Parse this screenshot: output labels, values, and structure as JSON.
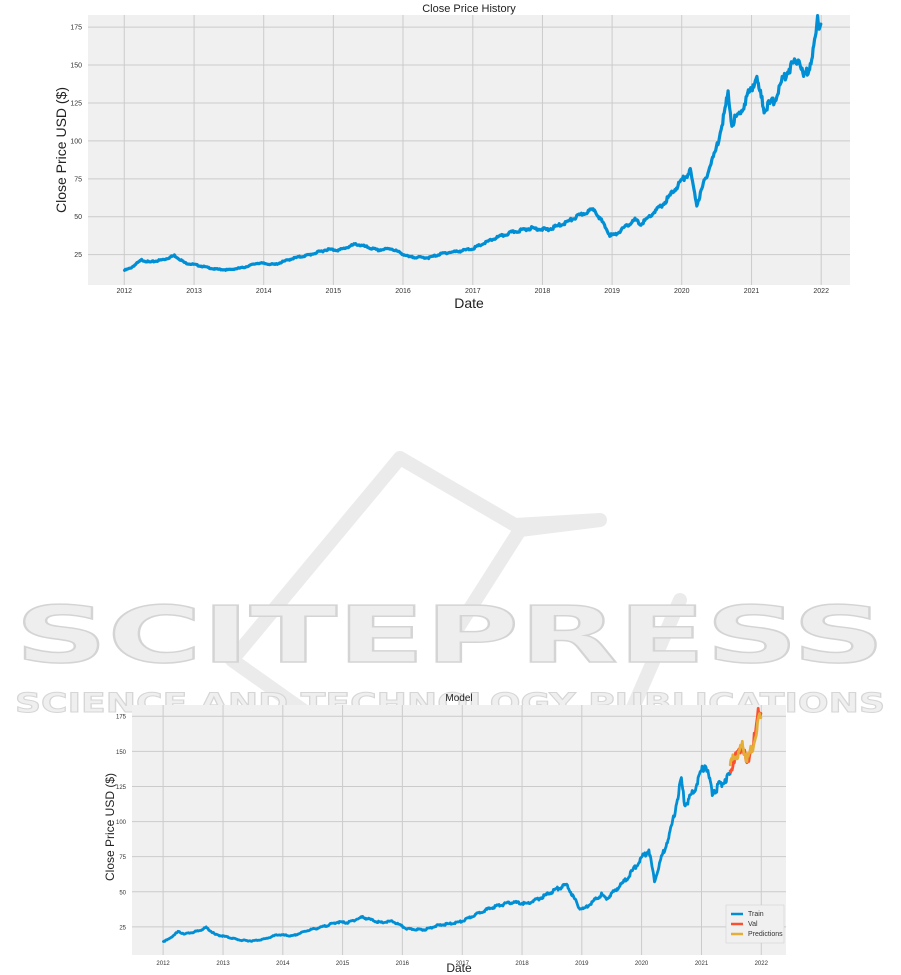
{
  "watermark": {
    "brand": "SCITEPRESS",
    "tagline": "SCIENCE AND TECHNOLOGY PUBLICATIONS"
  },
  "colors": {
    "train": "#008fd5",
    "val": "#fc4f30",
    "predictions": "#e5ae38",
    "plot_bg": "#f0f0f0",
    "grid": "#cbcbcb"
  },
  "chart_data": [
    {
      "type": "line",
      "title": "Close Price History",
      "xlabel": "Date",
      "ylabel": "Close Price USD ($)",
      "x_ticks": [
        "2012",
        "2013",
        "2014",
        "2015",
        "2016",
        "2017",
        "2018",
        "2019",
        "2020",
        "2021",
        "2022"
      ],
      "y_ticks": [
        "25",
        "50",
        "75",
        "100",
        "125",
        "150",
        "175"
      ],
      "xlim": [
        "2011-06-25",
        "2022-06-01"
      ],
      "ylim": [
        5,
        183
      ],
      "grid": true,
      "series": [
        {
          "key": "close",
          "x": [
            "2012-01-03",
            "2012-02-01",
            "2012-04-01",
            "2012-05-15",
            "2012-08-01",
            "2012-09-20",
            "2012-11-15",
            "2013-01-01",
            "2013-04-20",
            "2013-07-01",
            "2013-09-15",
            "2013-12-01",
            "2014-03-01",
            "2014-06-01",
            "2014-09-01",
            "2014-12-01",
            "2015-02-01",
            "2015-05-01",
            "2015-08-20",
            "2015-11-01",
            "2016-02-01",
            "2016-05-15",
            "2016-08-01",
            "2016-11-01",
            "2017-01-01",
            "2017-05-01",
            "2017-08-01",
            "2017-11-01",
            "2018-02-01",
            "2018-05-01",
            "2018-08-01",
            "2018-10-01",
            "2018-12-20",
            "2019-01-15",
            "2019-05-01",
            "2019-06-01",
            "2019-08-01",
            "2019-10-01",
            "2020-01-01",
            "2020-02-15",
            "2020-03-20",
            "2020-05-01",
            "2020-07-01",
            "2020-08-31",
            "2020-09-20",
            "2020-11-01",
            "2021-01-25",
            "2021-03-08",
            "2021-05-01",
            "2021-07-01",
            "2021-09-07",
            "2021-10-01",
            "2021-11-01",
            "2021-12-01",
            "2021-12-13",
            "2021-12-30"
          ],
          "values": [
            14.7,
            16,
            21.5,
            20,
            22,
            24.5,
            19.5,
            18.5,
            15.5,
            15,
            16.5,
            19.5,
            18.5,
            22.5,
            25,
            28.5,
            28,
            32,
            28,
            29,
            23.5,
            23,
            26,
            27.5,
            29,
            36,
            40,
            42.5,
            41.5,
            46,
            52,
            55,
            38,
            38,
            48,
            45,
            52,
            59,
            74,
            80,
            58,
            74,
            95,
            130,
            112,
            118,
            142,
            121,
            127,
            145,
            156,
            141,
            150,
            165,
            179,
            177
          ]
        }
      ]
    },
    {
      "type": "line",
      "title": "Model",
      "xlabel": "Date",
      "ylabel": "Close Price USD ($)",
      "x_ticks": [
        "2012",
        "2013",
        "2014",
        "2015",
        "2016",
        "2017",
        "2018",
        "2019",
        "2020",
        "2021",
        "2022"
      ],
      "y_ticks": [
        "25",
        "50",
        "75",
        "100",
        "125",
        "150",
        "175"
      ],
      "xlim": [
        "2011-06-25",
        "2022-06-01"
      ],
      "ylim": [
        5,
        183
      ],
      "grid": true,
      "legend_position": "lower-right",
      "series": [
        {
          "name": "Train",
          "key": "train",
          "x": [
            "2012-01-03",
            "2012-02-01",
            "2012-04-01",
            "2012-05-15",
            "2012-08-01",
            "2012-09-20",
            "2012-11-15",
            "2013-01-01",
            "2013-04-20",
            "2013-07-01",
            "2013-09-15",
            "2013-12-01",
            "2014-03-01",
            "2014-06-01",
            "2014-09-01",
            "2014-12-01",
            "2015-02-01",
            "2015-05-01",
            "2015-08-20",
            "2015-11-01",
            "2016-02-01",
            "2016-05-15",
            "2016-08-01",
            "2016-11-01",
            "2017-01-01",
            "2017-05-01",
            "2017-08-01",
            "2017-11-01",
            "2018-02-01",
            "2018-05-01",
            "2018-08-01",
            "2018-10-01",
            "2018-12-20",
            "2019-01-15",
            "2019-05-01",
            "2019-06-01",
            "2019-08-01",
            "2019-10-01",
            "2020-01-01",
            "2020-02-15",
            "2020-03-20",
            "2020-05-01",
            "2020-07-01",
            "2020-08-31",
            "2020-09-20",
            "2020-11-01",
            "2021-01-25",
            "2021-03-08",
            "2021-05-01",
            "2021-06-25"
          ],
          "values": [
            14.7,
            16,
            21.5,
            20,
            22,
            24.5,
            19.5,
            18.5,
            15.5,
            15,
            16.5,
            19.5,
            18.5,
            22.5,
            25,
            28.5,
            28,
            32,
            28,
            29,
            23.5,
            23,
            26,
            27.5,
            29,
            36,
            40,
            42.5,
            41.5,
            46,
            52,
            55,
            38,
            38,
            48,
            45,
            52,
            59,
            74,
            80,
            58,
            74,
            95,
            130,
            112,
            118,
            142,
            121,
            127,
            134
          ]
        },
        {
          "name": "Val",
          "key": "val",
          "x": [
            "2021-06-25",
            "2021-07-20",
            "2021-08-15",
            "2021-09-07",
            "2021-09-25",
            "2021-10-05",
            "2021-10-25",
            "2021-11-15",
            "2021-12-01",
            "2021-12-13",
            "2021-12-30"
          ],
          "values": [
            134,
            145,
            148,
            156,
            146,
            140,
            149,
            157,
            165,
            179,
            177
          ]
        },
        {
          "name": "Predictions",
          "key": "predictions",
          "x": [
            "2021-06-25",
            "2021-07-20",
            "2021-08-15",
            "2021-09-07",
            "2021-09-25",
            "2021-10-05",
            "2021-10-25",
            "2021-11-15",
            "2021-12-01",
            "2021-12-13",
            "2021-12-30"
          ],
          "values": [
            140,
            146,
            149,
            154,
            149,
            144,
            149,
            155,
            162,
            172,
            174
          ]
        }
      ]
    }
  ]
}
